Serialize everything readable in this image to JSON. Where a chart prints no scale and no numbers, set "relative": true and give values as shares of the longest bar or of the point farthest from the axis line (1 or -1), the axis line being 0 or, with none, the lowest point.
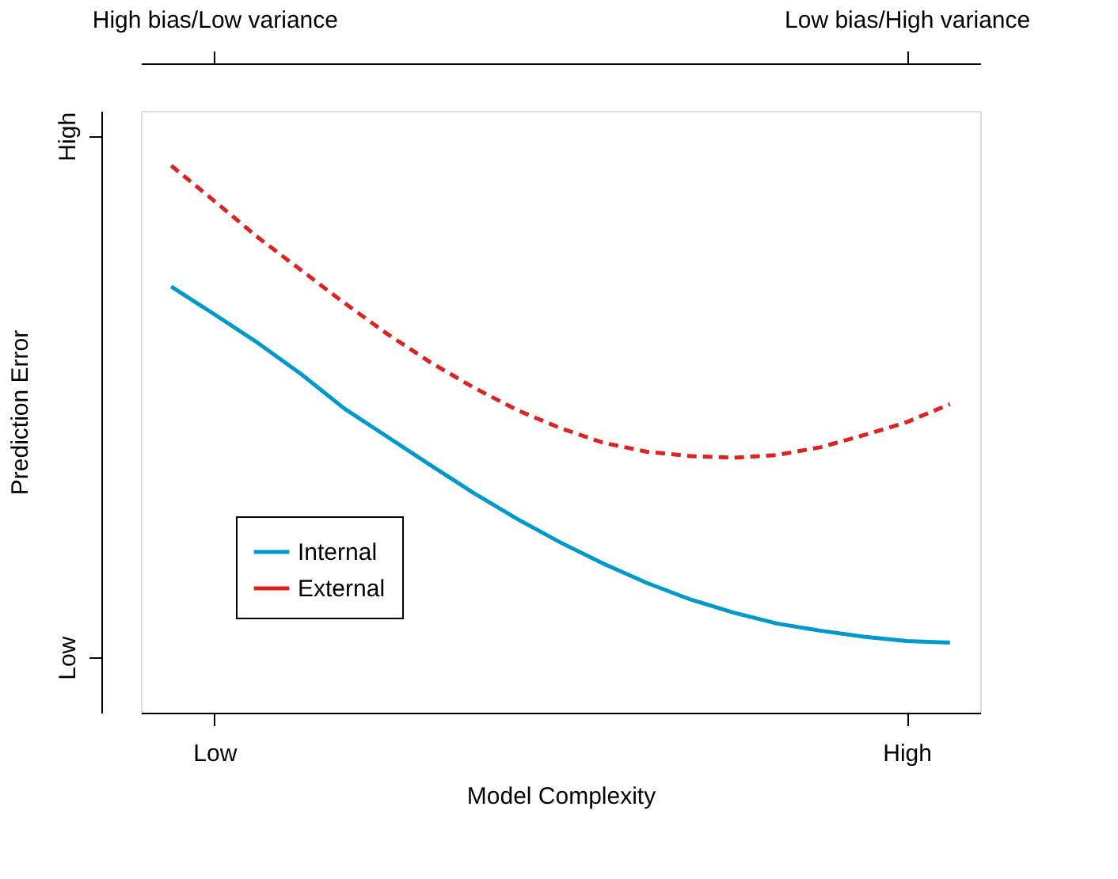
{
  "chart_data": {
    "type": "line",
    "relative": true,
    "xlabel": "Model Complexity",
    "ylabel": "Prediction Error",
    "categories": [
      null,
      "Low",
      null,
      null,
      null,
      null,
      null,
      null,
      null,
      null,
      null,
      null,
      null,
      null,
      null,
      null,
      null,
      "High",
      null
    ],
    "annotations": [
      "High bias/Low variance",
      "Low bias/High variance",
      "High",
      "Low"
    ],
    "grid": false,
    "legend": "bottom left",
    "series": [
      {
        "name": "Internal",
        "color": "#0099cc",
        "line_style": "solid",
        "values": [
          0.779,
          0.728,
          0.676,
          0.619,
          0.556,
          0.504,
          0.452,
          0.401,
          0.354,
          0.311,
          0.272,
          0.237,
          0.207,
          0.183,
          0.163,
          0.15,
          0.139,
          0.131,
          0.128
        ]
      },
      {
        "name": "External",
        "color": "#dd2222",
        "line_style": "dashed",
        "values": [
          1,
          0.935,
          0.869,
          0.809,
          0.749,
          0.692,
          0.64,
          0.594,
          0.553,
          0.52,
          0.493,
          0.477,
          0.469,
          0.466,
          0.471,
          0.485,
          0.507,
          0.531,
          0.564
        ]
      }
    ]
  }
}
